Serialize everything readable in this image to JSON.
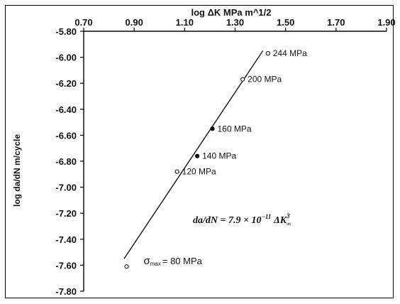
{
  "chart_data": {
    "type": "scatter",
    "title": "log ΔK MPa m^1/2",
    "ylabel": "log da/dN m/cycle",
    "xlabel": "",
    "xlim": [
      0.7,
      1.9
    ],
    "ylim": [
      -7.8,
      -5.8
    ],
    "x_ticks": [
      "0.70",
      "0.90",
      "1.10",
      "1.30",
      "1.50",
      "1.70",
      "1.90"
    ],
    "y_ticks": [
      "-5.80",
      "-6.00",
      "-6.20",
      "-6.40",
      "-6.60",
      "-6.80",
      "-7.00",
      "-7.20",
      "-7.40",
      "-7.60",
      "-7.80"
    ],
    "axis_position": "x-axis on top",
    "points": [
      {
        "label": "244 MPa",
        "x": 1.43,
        "y": -5.97,
        "marker": "open"
      },
      {
        "label": "200 MPa",
        "x": 1.33,
        "y": -6.17,
        "marker": "open"
      },
      {
        "label": "160 MPa",
        "x": 1.21,
        "y": -6.55,
        "marker": "filled"
      },
      {
        "label": "140 MPa",
        "x": 1.15,
        "y": -6.76,
        "marker": "filled"
      },
      {
        "label": "120 MPa",
        "x": 1.07,
        "y": -6.88,
        "marker": "open"
      },
      {
        "label_prefix": "σ",
        "label_sub": "max",
        "label": "= 80 MPa",
        "x": 0.87,
        "y": -7.61,
        "marker": "open"
      }
    ],
    "fit_line": {
      "x": [
        0.86,
        1.41
      ],
      "y": [
        -7.55,
        -5.95
      ]
    },
    "equation": {
      "main": "da/dN = 7.9 × 10",
      "exp1": "−11",
      "mid": " ΔK",
      "exp2": "3",
      "sub": "∞"
    }
  }
}
